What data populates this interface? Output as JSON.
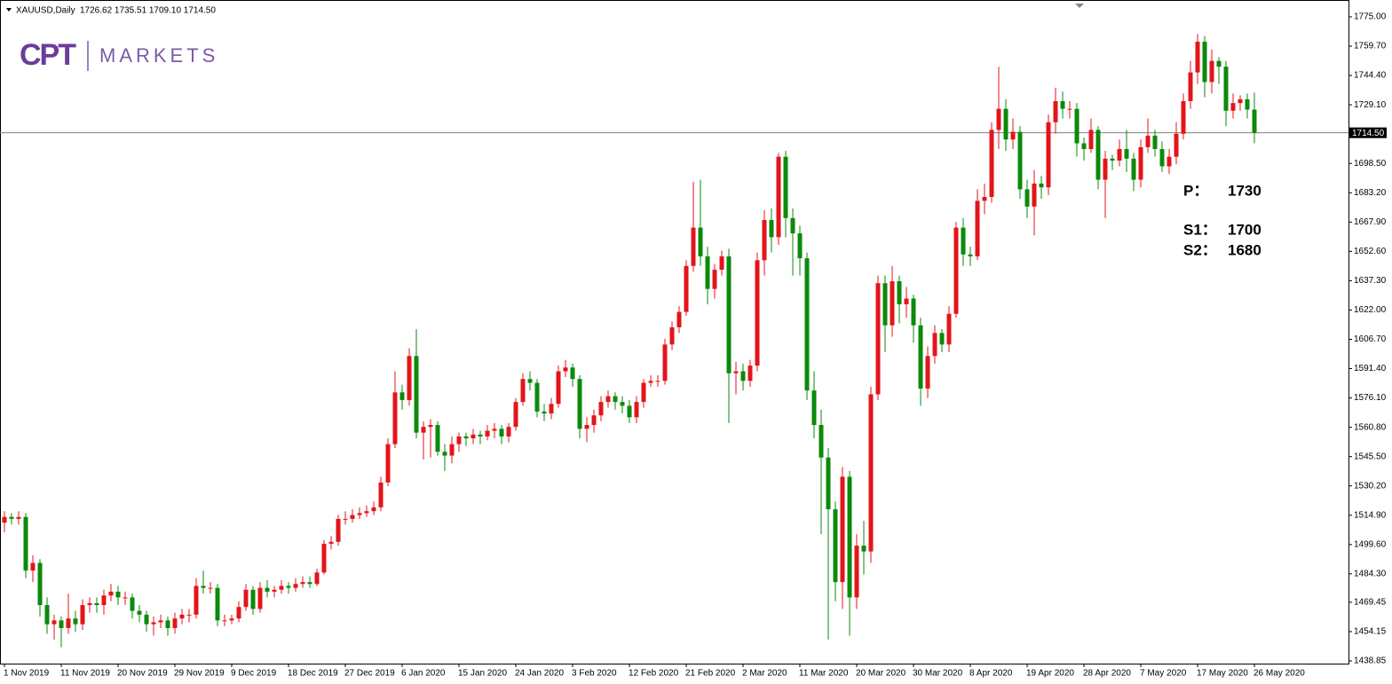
{
  "chart_data": {
    "type": "candlestick",
    "symbol": "XAUUSD,Daily",
    "bar_text": "1726.62 1735.51 1709.10 1714.50",
    "logo": {
      "mark": "CPT",
      "name": "MARKETS"
    },
    "up_color": "#e3151b",
    "down_color": "#0b8a0b",
    "ylim": [
      1437.46,
      1781.48
    ],
    "yticks": [
      1438.85,
      1454.15,
      1469.45,
      {
        "value": 1484.3,
        "label": "1484.30"
      },
      {
        "value": 1499.6,
        "label": "1499.60"
      },
      {
        "value": 1514.9,
        "label": "1514.90"
      },
      {
        "value": 1530.2,
        "label": "1530.20"
      },
      {
        "value": 1545.5,
        "label": "1545.50"
      },
      {
        "value": 1560.8,
        "label": "1560.80"
      },
      {
        "value": 1576.1,
        "label": "1576.10"
      },
      {
        "value": 1591.4,
        "label": "1591.40"
      },
      {
        "value": 1606.7,
        "label": "1606.70"
      },
      {
        "value": 1622,
        "label": "1622.00"
      },
      {
        "value": 1637.3,
        "label": "1637.30"
      },
      {
        "value": 1652.6,
        "label": "1652.60"
      },
      {
        "value": 1667.9,
        "label": "1667.90"
      },
      {
        "value": 1683.2,
        "label": "1683.20"
      },
      {
        "value": 1698.5,
        "label": "1698.50"
      },
      {
        "value": 1729.1,
        "label": "1729.10"
      },
      {
        "value": 1744.4,
        "label": "1744.40"
      },
      {
        "value": 1759.7,
        "label": "1759.70"
      },
      {
        "value": 1775,
        "label": "1775.00"
      }
    ],
    "price_line": {
      "value": 1714.5,
      "label": "1714.50"
    },
    "annotations": [
      {
        "label": "P：",
        "value": 1730
      },
      {
        "label": "S1：",
        "value": 1700
      },
      {
        "label": "S2：",
        "value": 1680
      }
    ],
    "categories": [
      "1 Nov 2019",
      null,
      null,
      null,
      null,
      null,
      null,
      null,
      "11 Nov 2019",
      null,
      null,
      null,
      null,
      null,
      null,
      null,
      "20 Nov 2019",
      null,
      null,
      null,
      null,
      null,
      null,
      null,
      "29 Nov 2019",
      null,
      null,
      null,
      null,
      null,
      null,
      null,
      "9 Dec 2019",
      null,
      null,
      null,
      null,
      null,
      null,
      null,
      "18 Dec 2019",
      null,
      null,
      null,
      null,
      null,
      null,
      null,
      "27 Dec 2019",
      null,
      null,
      null,
      null,
      null,
      null,
      null,
      "6 Jan 2020",
      null,
      null,
      null,
      null,
      null,
      null,
      null,
      "15 Jan 2020",
      null,
      null,
      null,
      null,
      null,
      null,
      null,
      "24 Jan 2020",
      null,
      null,
      null,
      null,
      null,
      null,
      null,
      "3 Feb 2020",
      null,
      null,
      null,
      null,
      null,
      null,
      null,
      "12 Feb 2020",
      null,
      null,
      null,
      null,
      null,
      null,
      null,
      "21 Feb 2020",
      null,
      null,
      null,
      null,
      null,
      null,
      null,
      "2 Mar 2020",
      null,
      null,
      null,
      null,
      null,
      null,
      null,
      "11 Mar 2020",
      null,
      null,
      null,
      null,
      null,
      null,
      null,
      "20 Mar 2020",
      null,
      null,
      null,
      null,
      null,
      null,
      null,
      "30 Mar 2020",
      null,
      null,
      null,
      null,
      null,
      null,
      null,
      "8 Apr 2020",
      null,
      null,
      null,
      null,
      null,
      null,
      null,
      "19 Apr 2020",
      null,
      null,
      null,
      null,
      null,
      null,
      null,
      "28 Apr 2020",
      null,
      null,
      null,
      null,
      null,
      null,
      null,
      "7 May 2020",
      null,
      null,
      null,
      null,
      null,
      null,
      null,
      "17 May 2020",
      null,
      null,
      null,
      null,
      null,
      null,
      null,
      "26 May 2020"
    ],
    "ohlc": [
      [
        1511,
        1517,
        1506,
        1514
      ],
      [
        1514,
        1516,
        1510,
        1513
      ],
      [
        1513,
        1517,
        1510,
        1514
      ],
      [
        1514,
        1516,
        1482,
        1486
      ],
      [
        1486,
        1494,
        1480,
        1490
      ],
      [
        1490,
        1492,
        1462,
        1468
      ],
      [
        1468,
        1472,
        1453,
        1458
      ],
      [
        1458,
        1463,
        1450,
        1460
      ],
      [
        1460,
        1462,
        1446,
        1456
      ],
      [
        1456,
        1474,
        1453,
        1461
      ],
      [
        1461,
        1465,
        1454,
        1458
      ],
      [
        1458,
        1471,
        1455,
        1468
      ],
      [
        1468,
        1472,
        1464,
        1469
      ],
      [
        1469,
        1472,
        1464,
        1468
      ],
      [
        1468,
        1476,
        1463,
        1473
      ],
      [
        1473,
        1479,
        1470,
        1475
      ],
      [
        1475,
        1478,
        1468,
        1472
      ],
      [
        1472,
        1475,
        1468,
        1472
      ],
      [
        1472,
        1474,
        1461,
        1465
      ],
      [
        1465,
        1468,
        1459,
        1463
      ],
      [
        1463,
        1465,
        1454,
        1458
      ],
      [
        1458,
        1462,
        1452,
        1459
      ],
      [
        1459,
        1463,
        1456,
        1460
      ],
      [
        1460,
        1462,
        1452,
        1456
      ],
      [
        1456,
        1464,
        1453,
        1461
      ],
      [
        1461,
        1466,
        1458,
        1463
      ],
      [
        1463,
        1466,
        1459,
        1463
      ],
      [
        1463,
        1482,
        1461,
        1478
      ],
      [
        1478,
        1486,
        1474,
        1477
      ],
      [
        1477,
        1480,
        1474,
        1477
      ],
      [
        1477,
        1479,
        1457,
        1460
      ],
      [
        1460,
        1463,
        1457,
        1460
      ],
      [
        1460,
        1463,
        1458,
        1461
      ],
      [
        1461,
        1470,
        1459,
        1467
      ],
      [
        1467,
        1479,
        1465,
        1476
      ],
      [
        1476,
        1478,
        1463,
        1466
      ],
      [
        1466,
        1480,
        1464,
        1477
      ],
      [
        1477,
        1481,
        1472,
        1475
      ],
      [
        1475,
        1478,
        1472,
        1476
      ],
      [
        1476,
        1481,
        1474,
        1478
      ],
      [
        1478,
        1480,
        1474,
        1477
      ],
      [
        1477,
        1482,
        1475,
        1479
      ],
      [
        1479,
        1483,
        1477,
        1480
      ],
      [
        1480,
        1483,
        1477,
        1479
      ],
      [
        1479,
        1487,
        1478,
        1485
      ],
      [
        1485,
        1502,
        1484,
        1500
      ],
      [
        1500,
        1504,
        1497,
        1501
      ],
      [
        1501,
        1515,
        1499,
        1513
      ],
      [
        1513,
        1517,
        1510,
        1513
      ],
      [
        1513,
        1518,
        1511,
        1515
      ],
      [
        1515,
        1519,
        1513,
        1516
      ],
      [
        1516,
        1520,
        1514,
        1517
      ],
      [
        1517,
        1522,
        1515,
        1519
      ],
      [
        1519,
        1535,
        1517,
        1532
      ],
      [
        1532,
        1555,
        1530,
        1552
      ],
      [
        1552,
        1590,
        1550,
        1579
      ],
      [
        1579,
        1583,
        1570,
        1575
      ],
      [
        1575,
        1602,
        1572,
        1598
      ],
      [
        1598,
        1612,
        1555,
        1558
      ],
      [
        1558,
        1564,
        1544,
        1561
      ],
      [
        1561,
        1565,
        1545,
        1562
      ],
      [
        1562,
        1564,
        1546,
        1548
      ],
      [
        1548,
        1552,
        1538,
        1546
      ],
      [
        1546,
        1556,
        1542,
        1552
      ],
      [
        1552,
        1558,
        1548,
        1556
      ],
      [
        1556,
        1558,
        1551,
        1555
      ],
      [
        1555,
        1560,
        1552,
        1557
      ],
      [
        1557,
        1559,
        1552,
        1556
      ],
      [
        1556,
        1562,
        1554,
        1559
      ],
      [
        1559,
        1563,
        1555,
        1560
      ],
      [
        1560,
        1562,
        1552,
        1556
      ],
      [
        1556,
        1563,
        1553,
        1561
      ],
      [
        1561,
        1576,
        1559,
        1574
      ],
      [
        1574,
        1589,
        1572,
        1586
      ],
      [
        1586,
        1590,
        1580,
        1584
      ],
      [
        1584,
        1586,
        1566,
        1569
      ],
      [
        1569,
        1573,
        1564,
        1568
      ],
      [
        1568,
        1576,
        1565,
        1573
      ],
      [
        1573,
        1593,
        1571,
        1590
      ],
      [
        1590,
        1596,
        1587,
        1592
      ],
      [
        1592,
        1594,
        1582,
        1586
      ],
      [
        1586,
        1588,
        1555,
        1560
      ],
      [
        1560,
        1566,
        1553,
        1562
      ],
      [
        1562,
        1570,
        1558,
        1567
      ],
      [
        1567,
        1577,
        1564,
        1574
      ],
      [
        1574,
        1580,
        1571,
        1577
      ],
      [
        1577,
        1579,
        1570,
        1574
      ],
      [
        1574,
        1577,
        1568,
        1572
      ],
      [
        1572,
        1575,
        1563,
        1566
      ],
      [
        1566,
        1577,
        1563,
        1574
      ],
      [
        1574,
        1586,
        1571,
        1584
      ],
      [
        1584,
        1588,
        1582,
        1585
      ],
      [
        1585,
        1588,
        1582,
        1585
      ],
      [
        1585,
        1607,
        1583,
        1604
      ],
      [
        1604,
        1616,
        1601,
        1613
      ],
      [
        1613,
        1624,
        1610,
        1621
      ],
      [
        1621,
        1648,
        1619,
        1645
      ],
      [
        1645,
        1689,
        1642,
        1665
      ],
      [
        1665,
        1690,
        1645,
        1650
      ],
      [
        1650,
        1655,
        1625,
        1633
      ],
      [
        1633,
        1646,
        1628,
        1643
      ],
      [
        1643,
        1653,
        1640,
        1650
      ],
      [
        1650,
        1654,
        1563,
        1589
      ],
      [
        1589,
        1595,
        1578,
        1590
      ],
      [
        1590,
        1594,
        1580,
        1585
      ],
      [
        1585,
        1596,
        1582,
        1593
      ],
      [
        1593,
        1652,
        1590,
        1648
      ],
      [
        1648,
        1674,
        1640,
        1669
      ],
      [
        1669,
        1675,
        1652,
        1660
      ],
      [
        1660,
        1704,
        1656,
        1702
      ],
      [
        1702,
        1705,
        1660,
        1670
      ],
      [
        1670,
        1675,
        1640,
        1662
      ],
      [
        1662,
        1666,
        1640,
        1649
      ],
      [
        1649,
        1652,
        1575,
        1580
      ],
      [
        1580,
        1590,
        1555,
        1562
      ],
      [
        1562,
        1570,
        1505,
        1545
      ],
      [
        1545,
        1550,
        1450,
        1518
      ],
      [
        1518,
        1522,
        1470,
        1480
      ],
      [
        1480,
        1540,
        1466,
        1535
      ],
      [
        1535,
        1538,
        1452,
        1472
      ],
      [
        1472,
        1505,
        1466,
        1499
      ],
      [
        1499,
        1512,
        1484,
        1496
      ],
      [
        1496,
        1582,
        1490,
        1578
      ],
      [
        1578,
        1640,
        1575,
        1636
      ],
      [
        1636,
        1640,
        1600,
        1614
      ],
      [
        1614,
        1645,
        1608,
        1637
      ],
      [
        1637,
        1640,
        1615,
        1625
      ],
      [
        1625,
        1634,
        1618,
        1628
      ],
      [
        1628,
        1630,
        1605,
        1614
      ],
      [
        1614,
        1618,
        1572,
        1581
      ],
      [
        1581,
        1603,
        1576,
        1598
      ],
      [
        1598,
        1614,
        1594,
        1610
      ],
      [
        1610,
        1612,
        1600,
        1604
      ],
      [
        1604,
        1624,
        1600,
        1620
      ],
      [
        1620,
        1668,
        1618,
        1665
      ],
      [
        1665,
        1670,
        1645,
        1651
      ],
      [
        1651,
        1655,
        1645,
        1650
      ],
      [
        1650,
        1685,
        1648,
        1679
      ],
      [
        1679,
        1688,
        1672,
        1681
      ],
      [
        1681,
        1720,
        1678,
        1716
      ],
      [
        1716,
        1749,
        1706,
        1727
      ],
      [
        1727,
        1732,
        1705,
        1711
      ],
      [
        1711,
        1722,
        1706,
        1715
      ],
      [
        1715,
        1718,
        1680,
        1685
      ],
      [
        1685,
        1690,
        1670,
        1676
      ],
      [
        1676,
        1695,
        1661,
        1688
      ],
      [
        1688,
        1692,
        1680,
        1686
      ],
      [
        1686,
        1724,
        1682,
        1720
      ],
      [
        1720,
        1738,
        1714,
        1731
      ],
      [
        1731,
        1736,
        1722,
        1727
      ],
      [
        1727,
        1731,
        1722,
        1727
      ],
      [
        1727,
        1730,
        1702,
        1709
      ],
      [
        1709,
        1712,
        1700,
        1706
      ],
      [
        1706,
        1722,
        1704,
        1716
      ],
      [
        1716,
        1718,
        1685,
        1690
      ],
      [
        1690,
        1705,
        1670,
        1701
      ],
      [
        1701,
        1703,
        1695,
        1700
      ],
      [
        1700,
        1711,
        1697,
        1706
      ],
      [
        1706,
        1716,
        1694,
        1701
      ],
      [
        1701,
        1704,
        1684,
        1690
      ],
      [
        1690,
        1711,
        1686,
        1707
      ],
      [
        1707,
        1722,
        1704,
        1713
      ],
      [
        1713,
        1716,
        1702,
        1706
      ],
      [
        1706,
        1710,
        1694,
        1697
      ],
      [
        1697,
        1706,
        1693,
        1702
      ],
      [
        1702,
        1720,
        1698,
        1714
      ],
      [
        1714,
        1735,
        1711,
        1731
      ],
      [
        1731,
        1752,
        1727,
        1746
      ],
      [
        1746,
        1766,
        1740,
        1762
      ],
      [
        1762,
        1765,
        1733,
        1741
      ],
      [
        1741,
        1758,
        1735,
        1752
      ],
      [
        1752,
        1754,
        1740,
        1749
      ],
      [
        1749,
        1752,
        1718,
        1726
      ],
      [
        1726,
        1735,
        1722,
        1730
      ],
      [
        1730,
        1734,
        1726,
        1732
      ],
      [
        1732,
        1735,
        1722,
        1726.62
      ],
      [
        1726.62,
        1735.51,
        1709.1,
        1714.5
      ]
    ]
  }
}
